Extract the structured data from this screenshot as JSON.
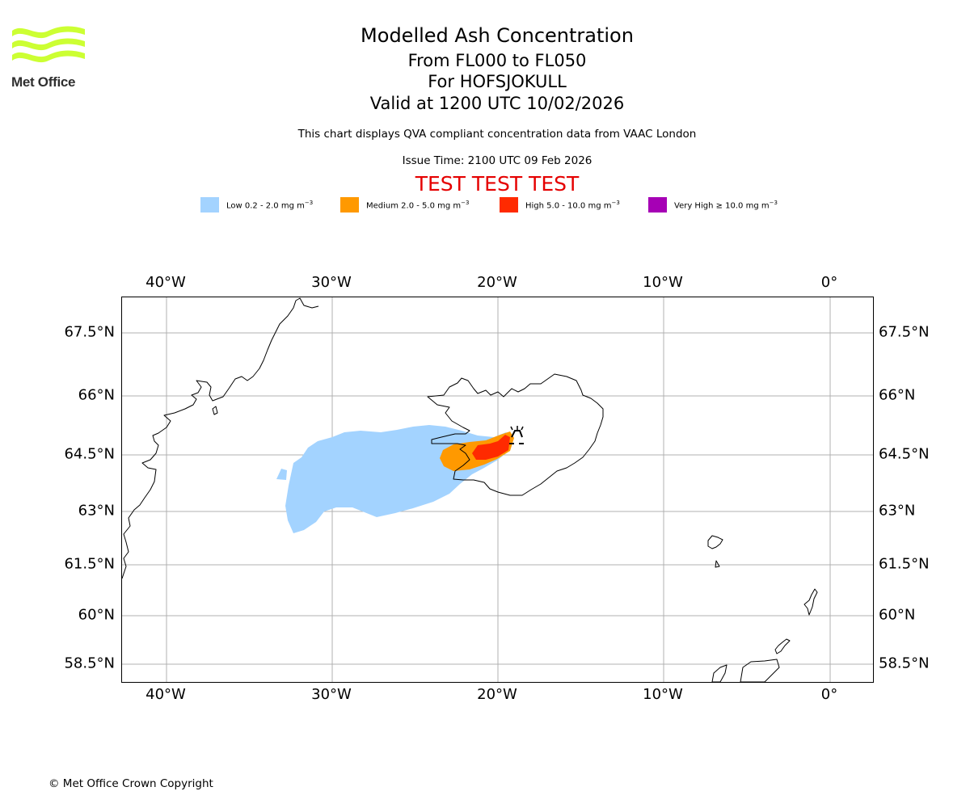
{
  "logo": {
    "name": "Met Office"
  },
  "header": {
    "title": "Modelled Ash Concentration",
    "levels": "From FL000 to FL050",
    "volcano": "For HOFSJOKULL",
    "valid": "Valid at 1200 UTC 10/02/2026",
    "description": "This chart displays QVA compliant concentration data from VAAC London",
    "issue_time": "Issue Time: 2100 UTC 09 Feb 2026",
    "test_banner": "TEST TEST TEST"
  },
  "legend": [
    {
      "label": "Low 0.2 - 2.0 mg m",
      "exp": "−3",
      "color": "#a3d3ff"
    },
    {
      "label": "Medium 2.0 - 5.0 mg m",
      "exp": "−3",
      "color": "#ff9900"
    },
    {
      "label": "High 5.0 - 10.0 mg m",
      "exp": "−3",
      "color": "#ff2a00"
    },
    {
      "label": "Very High  ≥  10.0 mg m",
      "exp": "−3",
      "color": "#a600b5"
    }
  ],
  "map": {
    "lon_ticks": [
      "40°W",
      "30°W",
      "20°W",
      "10°W",
      "0°"
    ],
    "lat_ticks": [
      "67.5°N",
      "66°N",
      "64.5°N",
      "63°N",
      "61.5°N",
      "60°N",
      "58.5°N"
    ],
    "lon_range": [
      -42.6,
      2.6
    ],
    "lat_range": [
      58.0,
      68.4
    ],
    "volcano_location": {
      "lon": -18.9,
      "lat": 64.85
    },
    "gridline_color": "#b0b0b0",
    "coast_color": "#000000"
  },
  "footer": {
    "copyright": "© Met Office Crown Copyright"
  }
}
